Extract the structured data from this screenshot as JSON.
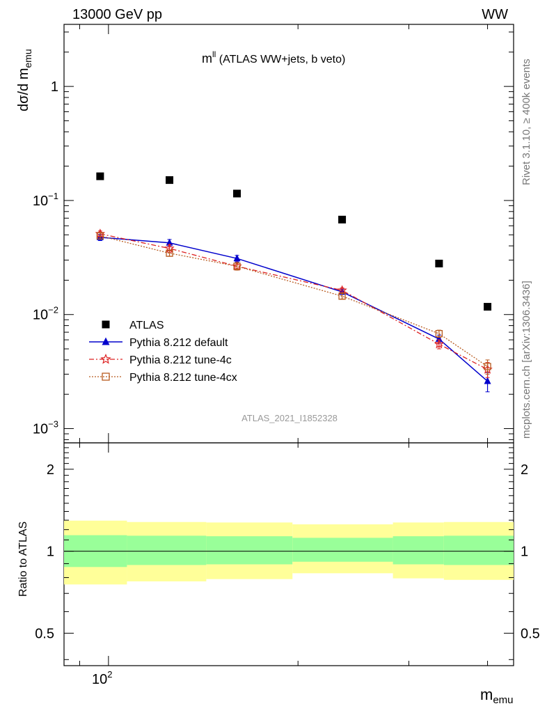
{
  "header": {
    "left": "13000 GeV pp",
    "right": "WW",
    "plot_title_base": "m",
    "plot_title_sup": "ll",
    "plot_title_rest": " (ATLAS WW+jets, b veto)"
  },
  "axes": {
    "ylabel_main": "dσ/d m",
    "ylabel_main_sub": "emu",
    "ylabel_ratio": "Ratio to ATLAS",
    "xlabel": "m",
    "xlabel_sub": "emu",
    "x_tick_base": "10",
    "x_tick_exp": "2",
    "y_ticks_main": [
      {
        "base": "1",
        "exp": ""
      },
      {
        "base": "10",
        "exp": "−1"
      },
      {
        "base": "10",
        "exp": "−2"
      },
      {
        "base": "10",
        "exp": "−3"
      }
    ],
    "y_ticks_ratio": [
      "2",
      "1",
      "0.5"
    ]
  },
  "side_text": {
    "rivet": "Rivet 3.1.10, ≥ 400k events",
    "mcplots": "mcplots.cern.ch [arXiv:1306.3436]"
  },
  "analysis_id": "ATLAS_2021_I1852328",
  "legend": [
    {
      "label": "ATLAS",
      "color": "#000000",
      "marker": "square"
    },
    {
      "label": "Pythia 8.212 default",
      "color": "#0000cc",
      "marker": "triangle"
    },
    {
      "label": "Pythia 8.212 tune-4c",
      "color": "#dd2222",
      "marker": "star"
    },
    {
      "label": "Pythia 8.212 tune-4cx",
      "color": "#b85a1e",
      "marker": "open-square"
    }
  ],
  "chart_data": {
    "type": "scatter",
    "x_scale": "log",
    "y_scale": "log",
    "xlim": [
      85,
      440
    ],
    "ylim": [
      0.00075,
      3.5
    ],
    "ratio_ylim": [
      0.38,
      2.5
    ],
    "x": [
      97,
      125,
      160,
      235,
      335,
      400
    ],
    "series": [
      {
        "name": "ATLAS",
        "values": [
          0.163,
          0.151,
          0.115,
          0.068,
          0.028,
          0.0117
        ],
        "errors": [
          0,
          0,
          0,
          0,
          0,
          0
        ]
      },
      {
        "name": "Pythia 8.212 default",
        "values": [
          0.0475,
          0.0425,
          0.031,
          0.0158,
          0.0061,
          0.0026
        ],
        "errors": [
          0.003,
          0.003,
          0.002,
          0.0008,
          0.0005,
          0.0005
        ]
      },
      {
        "name": "Pythia 8.212 tune-4c",
        "values": [
          0.051,
          0.038,
          0.0265,
          0.0163,
          0.0055,
          0.0033
        ],
        "errors": [
          0.003,
          0.003,
          0.002,
          0.0008,
          0.0005,
          0.0005
        ]
      },
      {
        "name": "Pythia 8.212 tune-4cx",
        "values": [
          0.049,
          0.0345,
          0.0265,
          0.0145,
          0.0068,
          0.0035
        ],
        "errors": [
          0.003,
          0.002,
          0.002,
          0.0008,
          0.0005,
          0.0005
        ]
      }
    ],
    "ratio_bands": [
      {
        "x_low": 85,
        "x_high": 107,
        "inner": [
          0.875,
          1.145
        ],
        "outer": [
          0.755,
          1.295
        ]
      },
      {
        "x_low": 107,
        "x_high": 143,
        "inner": [
          0.89,
          1.14
        ],
        "outer": [
          0.775,
          1.28
        ]
      },
      {
        "x_low": 143,
        "x_high": 196,
        "inner": [
          0.895,
          1.135
        ],
        "outer": [
          0.79,
          1.275
        ]
      },
      {
        "x_low": 196,
        "x_high": 283,
        "inner": [
          0.915,
          1.12
        ],
        "outer": [
          0.83,
          1.255
        ]
      },
      {
        "x_low": 283,
        "x_high": 341,
        "inner": [
          0.895,
          1.135
        ],
        "outer": [
          0.795,
          1.275
        ]
      },
      {
        "x_low": 341,
        "x_high": 440,
        "inner": [
          0.89,
          1.14
        ],
        "outer": [
          0.785,
          1.28
        ]
      }
    ],
    "band_colors": {
      "inner": "#99ff99",
      "outer": "#ffff99"
    }
  }
}
